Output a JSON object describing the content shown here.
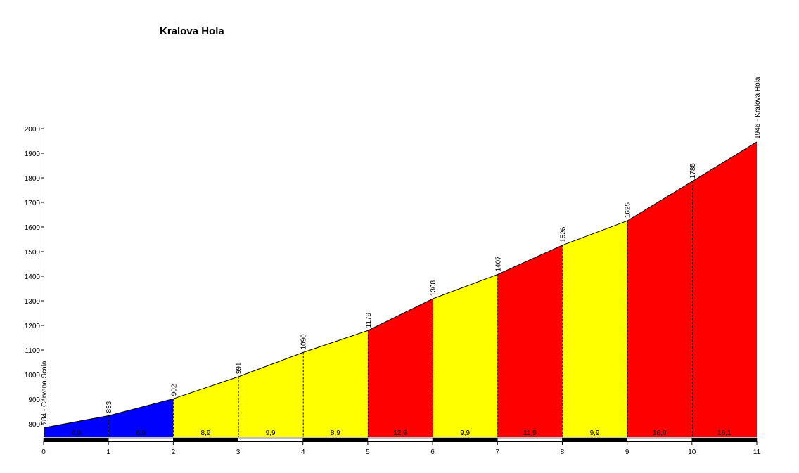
{
  "chart_data": {
    "type": "area",
    "title": "Kralova Hola",
    "xlabel": "",
    "ylabel": "",
    "xlim": [
      0,
      11
    ],
    "ylim": [
      750,
      2000
    ],
    "x_ticks": [
      0,
      1,
      2,
      3,
      4,
      5,
      6,
      7,
      8,
      9,
      10,
      11
    ],
    "y_ticks": [
      800,
      900,
      1000,
      1100,
      1200,
      1300,
      1400,
      1500,
      1600,
      1700,
      1800,
      1900,
      2000
    ],
    "points": [
      {
        "km": 0,
        "elevation": 784
      },
      {
        "km": 1,
        "elevation": 833
      },
      {
        "km": 2,
        "elevation": 902
      },
      {
        "km": 3,
        "elevation": 991
      },
      {
        "km": 4,
        "elevation": 1090
      },
      {
        "km": 5,
        "elevation": 1179
      },
      {
        "km": 6,
        "elevation": 1308
      },
      {
        "km": 7,
        "elevation": 1407
      },
      {
        "km": 8,
        "elevation": 1526
      },
      {
        "km": 9,
        "elevation": 1625
      },
      {
        "km": 10,
        "elevation": 1785
      },
      {
        "km": 11,
        "elevation": 1946
      }
    ],
    "point_labels": [
      "784 - Cervena Scala",
      "833",
      "902",
      "991",
      "1090",
      "1179",
      "1308",
      "1407",
      "1526",
      "1625",
      "1785",
      "1946 - Kralova Hola"
    ],
    "segments": [
      {
        "gradient": "4,9",
        "color": "#0000ff"
      },
      {
        "gradient": "6,9",
        "color": "#0000ff"
      },
      {
        "gradient": "8,9",
        "color": "#ffff00"
      },
      {
        "gradient": "9,9",
        "color": "#ffff00"
      },
      {
        "gradient": "8,9",
        "color": "#ffff00"
      },
      {
        "gradient": "12,9",
        "color": "#ff0000"
      },
      {
        "gradient": "9,9",
        "color": "#ffff00"
      },
      {
        "gradient": "11,9",
        "color": "#ff0000"
      },
      {
        "gradient": "9,9",
        "color": "#ffff00"
      },
      {
        "gradient": "16,0",
        "color": "#ff0000"
      },
      {
        "gradient": "16,1",
        "color": "#ff0000"
      }
    ],
    "grid": false,
    "legend": "none"
  }
}
